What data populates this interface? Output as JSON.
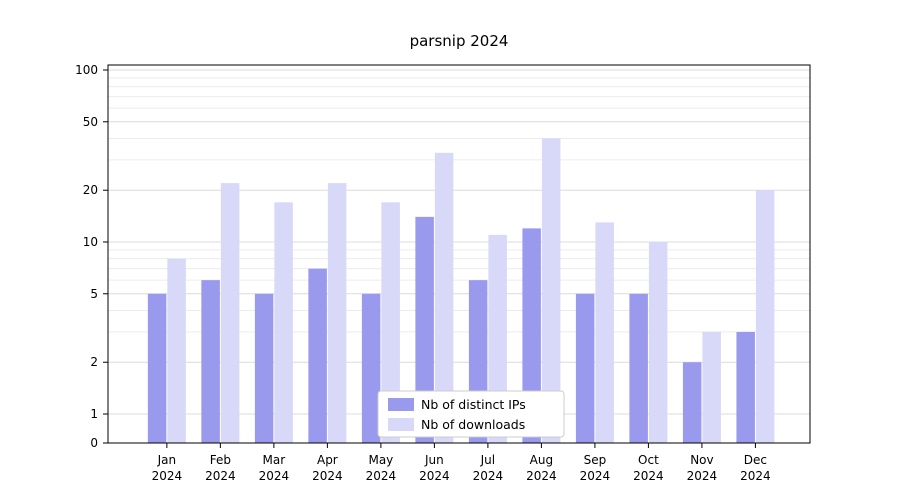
{
  "chart": {
    "title": "parsnip 2024"
  },
  "chart_data": {
    "type": "bar",
    "title": "parsnip 2024",
    "categories": [
      "Jan 2024",
      "Feb 2024",
      "Mar 2024",
      "Apr 2024",
      "May 2024",
      "Jun 2024",
      "Jul 2024",
      "Aug 2024",
      "Sep 2024",
      "Oct 2024",
      "Nov 2024",
      "Dec 2024"
    ],
    "series": [
      {
        "name": "Nb of distinct IPs",
        "color": "#9999ee",
        "values": [
          5,
          6,
          5,
          7,
          5,
          14,
          6,
          12,
          5,
          5,
          2,
          3
        ]
      },
      {
        "name": "Nb of downloads",
        "color": "#d8d8f8",
        "values": [
          8,
          22,
          17,
          22,
          17,
          33,
          11,
          40,
          13,
          10,
          3,
          20
        ]
      }
    ],
    "yscale": "symlog",
    "yticks": [
      0,
      1,
      2,
      5,
      10,
      20,
      50,
      100
    ],
    "ylim": [
      0,
      100
    ],
    "grid": true,
    "legend_position": "lower center"
  }
}
